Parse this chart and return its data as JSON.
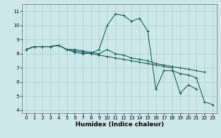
{
  "xlabel": "Humidex (Indice chaleur)",
  "background_color": "#cce8e8",
  "grid_color": "#aacccc",
  "line_color": "#1a6060",
  "x_values": [
    0,
    1,
    2,
    3,
    4,
    5,
    6,
    7,
    8,
    9,
    10,
    11,
    12,
    13,
    14,
    15,
    16,
    17,
    18,
    19,
    20,
    21,
    22,
    23
  ],
  "line1": [
    8.3,
    8.5,
    8.5,
    8.5,
    8.6,
    8.3,
    8.3,
    8.2,
    8.1,
    8.0,
    8.3,
    8.0,
    7.9,
    7.7,
    7.6,
    7.5,
    7.3,
    7.2,
    7.1,
    7.0,
    6.9,
    6.8,
    6.7,
    null
  ],
  "line2": [
    8.3,
    8.5,
    8.5,
    8.5,
    8.6,
    8.3,
    8.1,
    8.0,
    8.05,
    8.3,
    10.0,
    10.8,
    10.7,
    10.3,
    10.5,
    9.6,
    5.5,
    6.8,
    6.8,
    6.6,
    6.5,
    6.3,
    4.6,
    4.4
  ],
  "line3": [
    8.3,
    8.5,
    8.5,
    8.5,
    8.6,
    8.3,
    8.2,
    8.1,
    8.0,
    7.9,
    7.8,
    7.7,
    7.6,
    7.5,
    7.4,
    7.3,
    7.2,
    7.1,
    7.0,
    5.2,
    5.8,
    5.5,
    null,
    null
  ],
  "ylim": [
    3.8,
    11.5
  ],
  "xlim": [
    -0.5,
    23.5
  ],
  "yticks": [
    4,
    5,
    6,
    7,
    8,
    9,
    10,
    11
  ],
  "xticks": [
    0,
    1,
    2,
    3,
    4,
    5,
    6,
    7,
    8,
    9,
    10,
    11,
    12,
    13,
    14,
    15,
    16,
    17,
    18,
    19,
    20,
    21,
    22,
    23
  ]
}
